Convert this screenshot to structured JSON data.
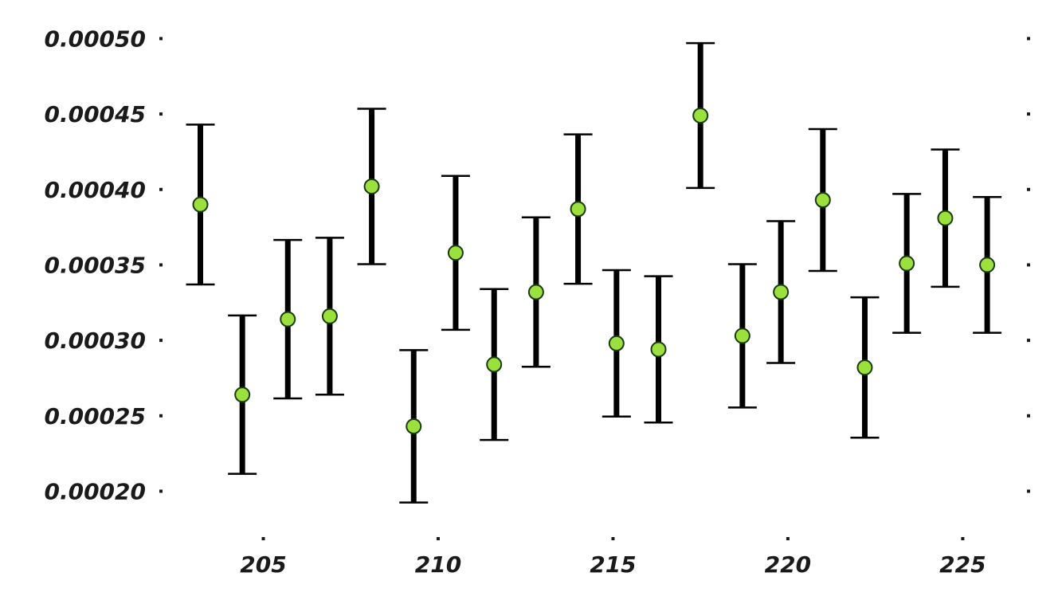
{
  "chart_data": {
    "type": "scatter",
    "title": "",
    "xlabel": "",
    "ylabel": "",
    "xlim": [
      202.3,
      226.7
    ],
    "ylim": [
      0.000177,
      0.000515
    ],
    "x_ticks": [
      205,
      210,
      215,
      220,
      225
    ],
    "x_tick_labels": [
      "205",
      "210",
      "215",
      "220",
      "225"
    ],
    "y_ticks": [
      0.0002,
      0.00025,
      0.0003,
      0.00035,
      0.0004,
      0.00045,
      0.0005
    ],
    "y_tick_labels": [
      "0.00020",
      "0.00025",
      "0.00030",
      "0.00035",
      "0.00040",
      "0.00045",
      "0.00050"
    ],
    "grid": false,
    "legend": "none",
    "marker_color": "#9be03c",
    "marker_edge_color": "#1a3a10",
    "errorbar_color": "#000000",
    "series": [
      {
        "x": [
          203.2,
          204.4,
          205.7,
          206.9,
          208.1,
          209.3,
          210.5,
          211.6,
          212.8,
          214.0,
          215.1,
          216.3,
          217.5,
          218.7,
          219.8,
          221.0,
          222.2,
          223.4,
          224.5,
          225.7
        ],
        "y": [
          0.00039,
          0.000264,
          0.000314,
          0.000316,
          0.000402,
          0.000243,
          0.000358,
          0.000284,
          0.000332,
          0.000387,
          0.000298,
          0.000294,
          0.000449,
          0.000303,
          0.000332,
          0.000393,
          0.000282,
          0.000351,
          0.000381,
          0.00035
        ],
        "yerr": [
          5.3e-05,
          5.25e-05,
          5.25e-05,
          5.2e-05,
          5.15e-05,
          5.05e-05,
          5.1e-05,
          5e-05,
          4.95e-05,
          4.95e-05,
          4.85e-05,
          4.85e-05,
          4.8e-05,
          4.75e-05,
          4.7e-05,
          4.7e-05,
          4.65e-05,
          4.6e-05,
          4.55e-05,
          4.5e-05
        ]
      }
    ]
  }
}
